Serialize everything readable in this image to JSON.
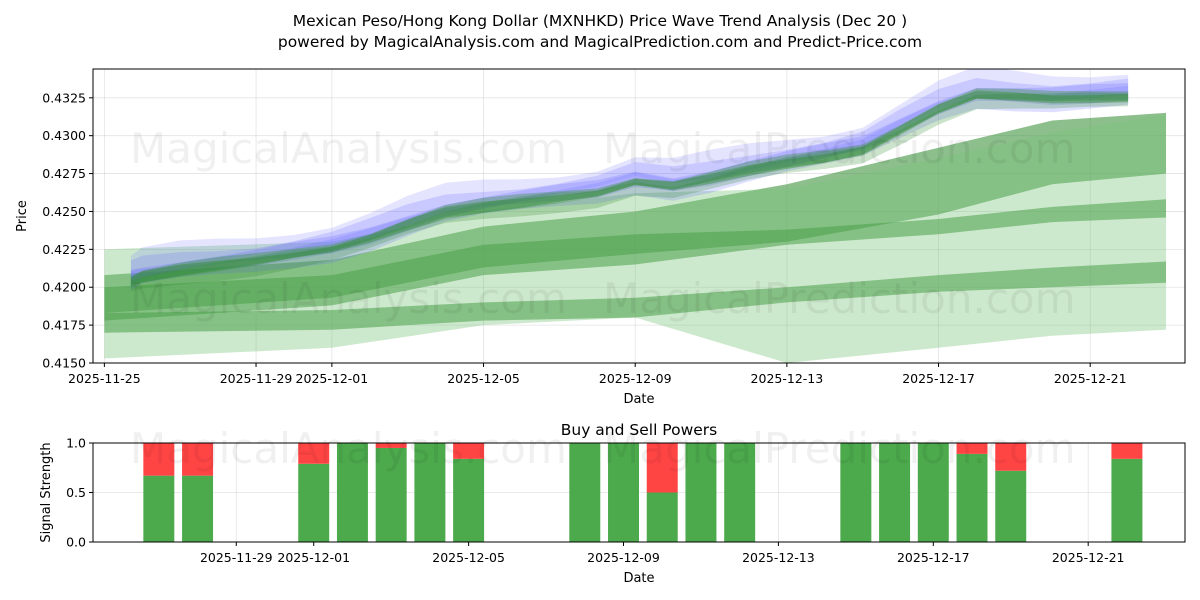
{
  "title_line1": "Mexican Peso/Hong Kong Dollar (MXNHKD) Price Wave Trend Analysis (Dec 20 )",
  "title_line2": "powered by MagicalAnalysis.com and MagicalPrediction.com and Predict-Price.com",
  "watermarks": [
    "MagicalAnalysis.com",
    "MagicalPrediction.com"
  ],
  "colors": {
    "green": "#2e8b2e",
    "light_green": "#7cc47c",
    "blue": "#6b6bff",
    "buy": "#4caa4c",
    "sell": "#ff4444"
  },
  "chart_data": [
    {
      "type": "area",
      "title": "",
      "xlabel": "Date",
      "ylabel": "Price",
      "x_tick_labels": [
        "2025-11-25",
        "2025-11-29",
        "2025-12-01",
        "2025-12-05",
        "2025-12-09",
        "2025-12-13",
        "2025-12-17",
        "2025-12-21"
      ],
      "x_tick_days": [
        0,
        4,
        6,
        10,
        14,
        18,
        22,
        26
      ],
      "xlim_days": [
        -0.3,
        28.5
      ],
      "y_tick_labels": [
        "0.4150",
        "0.4175",
        "0.4200",
        "0.4225",
        "0.4250",
        "0.4275",
        "0.4300",
        "0.4325"
      ],
      "y_ticks": [
        0.415,
        0.4175,
        0.42,
        0.4225,
        0.425,
        0.4275,
        0.43,
        0.4325
      ],
      "ylim": [
        0.415,
        0.4344
      ],
      "grid": true,
      "history_center": {
        "days": [
          0.7,
          1,
          2,
          3,
          4,
          5,
          6,
          7,
          8,
          9,
          10,
          11,
          12,
          13,
          14,
          15,
          16,
          17,
          18,
          19,
          20,
          21,
          22,
          23,
          24,
          25,
          26,
          27
        ],
        "values": [
          0.4205,
          0.4208,
          0.4212,
          0.4215,
          0.4218,
          0.4222,
          0.4226,
          0.4233,
          0.4242,
          0.425,
          0.4254,
          0.4257,
          0.426,
          0.4263,
          0.427,
          0.4267,
          0.4272,
          0.4278,
          0.4283,
          0.4287,
          0.4292,
          0.4305,
          0.4318,
          0.4327,
          0.4326,
          0.4325,
          0.4326,
          0.4327
        ]
      },
      "forecast_bands": [
        {
          "name": "upper",
          "days": [
            0,
            6,
            10,
            14,
            18,
            22,
            25,
            28
          ],
          "lower": [
            0.4183,
            0.4193,
            0.4213,
            0.4222,
            0.423,
            0.4248,
            0.4268,
            0.4275
          ],
          "upper": [
            0.4208,
            0.4218,
            0.424,
            0.425,
            0.4268,
            0.4292,
            0.431,
            0.4315
          ]
        },
        {
          "name": "mid",
          "days": [
            0,
            6,
            10,
            14,
            18,
            22,
            25,
            28
          ],
          "lower": [
            0.4178,
            0.4188,
            0.4208,
            0.4215,
            0.4228,
            0.4235,
            0.4243,
            0.4246
          ],
          "upper": [
            0.42,
            0.4208,
            0.4228,
            0.4235,
            0.4238,
            0.4245,
            0.4253,
            0.4258
          ]
        },
        {
          "name": "low",
          "days": [
            0,
            6,
            10,
            14,
            18,
            22,
            25,
            28
          ],
          "lower": [
            0.417,
            0.4172,
            0.4178,
            0.418,
            0.419,
            0.4197,
            0.42,
            0.4203
          ],
          "upper": [
            0.4183,
            0.4185,
            0.419,
            0.4193,
            0.42,
            0.4208,
            0.4213,
            0.4217
          ]
        },
        {
          "name": "wide",
          "days": [
            0,
            6,
            10,
            14,
            18,
            22,
            25,
            28
          ],
          "lower": [
            0.4153,
            0.416,
            0.4175,
            0.418,
            0.415,
            0.416,
            0.4168,
            0.4172
          ],
          "upper": [
            0.4225,
            0.423,
            0.425,
            0.4262,
            0.4265,
            0.4285,
            0.4302,
            0.4314
          ]
        }
      ]
    },
    {
      "type": "bar",
      "title": "Buy and Sell Powers",
      "xlabel": "Date",
      "ylabel": "Signal Strength",
      "x_tick_labels": [
        "2025-11-29",
        "2025-12-01",
        "2025-12-05",
        "2025-12-09",
        "2025-12-13",
        "2025-12-17",
        "2025-12-21"
      ],
      "x_tick_days": [
        4,
        6,
        10,
        14,
        18,
        22,
        26
      ],
      "xlim_days": [
        0.3,
        28.5
      ],
      "y_tick_labels": [
        "0.0",
        "0.5",
        "1.0"
      ],
      "y_ticks": [
        0,
        0.5,
        1.0
      ],
      "ylim": [
        0,
        1
      ],
      "days": [
        2,
        3,
        6,
        7,
        8,
        9,
        10,
        13,
        14,
        15,
        16,
        17,
        20,
        21,
        22,
        23,
        24,
        27
      ],
      "buy": [
        0.67,
        0.67,
        0.79,
        1.0,
        0.95,
        1.0,
        0.84,
        1.0,
        1.0,
        0.5,
        1.0,
        1.0,
        1.0,
        1.0,
        1.0,
        0.89,
        0.72,
        0.84
      ],
      "sell": [
        0.33,
        0.33,
        0.21,
        0.0,
        0.05,
        0.0,
        0.16,
        0.0,
        0.0,
        0.5,
        0.0,
        0.0,
        0.0,
        0.0,
        0.0,
        0.11,
        0.28,
        0.16
      ]
    }
  ]
}
